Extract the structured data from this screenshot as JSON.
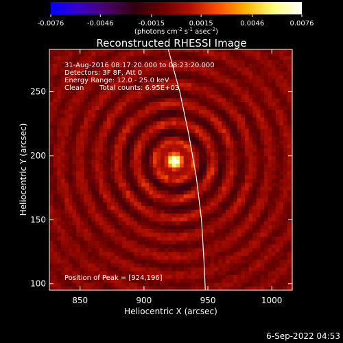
{
  "chart_data": {
    "type": "heatmap",
    "title": "Reconstructed RHESSI Image",
    "xlabel": "Heliocentric X (arcsec)",
    "ylabel": "Heliocentric Y (arcsec)",
    "xlim": [
      826,
      1016
    ],
    "ylim": [
      95,
      283
    ],
    "x_ticks": [
      "850",
      "900",
      "950",
      "1000"
    ],
    "x_tick_values": [
      850,
      900,
      950,
      1000
    ],
    "y_ticks": [
      "100",
      "150",
      "200",
      "250"
    ],
    "y_tick_values": [
      100,
      150,
      200,
      250
    ],
    "colorbar": {
      "ticks": [
        "-0.0076",
        "-0.0046",
        "-0.0015",
        "0.0015",
        "0.0046",
        "0.0076"
      ],
      "tick_values": [
        -0.0076,
        -0.0046,
        -0.0015,
        0.0015,
        0.0046,
        0.0076
      ],
      "range": [
        -0.0076,
        0.0076
      ],
      "colormap": [
        "#0000ff",
        "#3a00c8",
        "#4a006a",
        "#300010",
        "#6a0000",
        "#b21000",
        "#ff5000",
        "#ffb400",
        "#ffff80",
        "#ffffff"
      ],
      "units_prefix": "(photons cm",
      "units_sup1": "-2",
      "units_mid1": " s",
      "units_sup2": "-1",
      "units_mid2": " asec",
      "units_sup3": "-2",
      "units_suffix": ")"
    },
    "annotations": {
      "time_range": "31-Aug-2016 08:17:20.000 to 08:23:20.000",
      "detectors": "Detectors: 3F 8F, Att 0",
      "energy_range": "Energy Range: 12.0 - 25.0 keV",
      "clean_label": "Clean",
      "total_counts": "Total counts: 6.95E+03",
      "peak": "Position of Peak = [924,196]"
    },
    "peak": [
      924,
      196
    ],
    "source_sigma_arcsec": 5,
    "limb_points": [
      [
        919,
        283
      ],
      [
        928,
        250
      ],
      [
        935,
        217
      ],
      [
        941,
        183
      ],
      [
        945,
        150
      ],
      [
        947,
        117
      ],
      [
        948,
        95
      ]
    ],
    "grid": false,
    "limb_color": "#ffffff"
  },
  "footer": {
    "date": "6-Sep-2022 04:53"
  }
}
